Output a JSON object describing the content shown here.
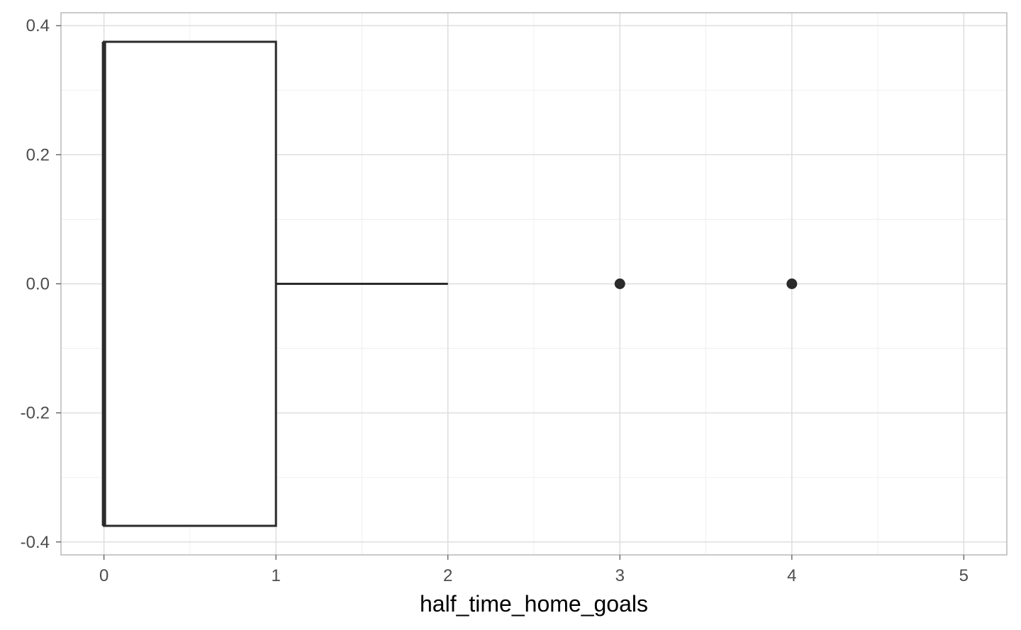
{
  "chart_data": {
    "type": "boxplot",
    "orientation": "horizontal",
    "title": "",
    "xlabel": "half_time_home_goals",
    "ylabel": "",
    "xlim": [
      -0.25,
      5.25
    ],
    "ylim": [
      -0.42,
      0.42
    ],
    "x_ticks": [
      0,
      1,
      2,
      3,
      4,
      5
    ],
    "x_tick_labels": [
      "0",
      "1",
      "2",
      "3",
      "4",
      "5"
    ],
    "y_ticks": [
      -0.4,
      -0.2,
      0.0,
      0.2,
      0.4
    ],
    "y_tick_labels": [
      "-0.4",
      "-0.2",
      "0.0",
      "0.2",
      "0.4"
    ],
    "grid": true,
    "box": {
      "min": 0,
      "q1": 0,
      "median": 0,
      "q3": 1,
      "whisker_high": 2,
      "y_center": 0,
      "half_width": 0.375
    },
    "outliers": [
      3,
      4
    ],
    "colors": {
      "box_line": "#2b2b2b",
      "box_fill": "#ffffff",
      "grid_major": "#dcdcdc",
      "grid_minor": "#ececec",
      "panel_border": "#b3b3b3",
      "tick_text": "#4d4d4d"
    }
  }
}
